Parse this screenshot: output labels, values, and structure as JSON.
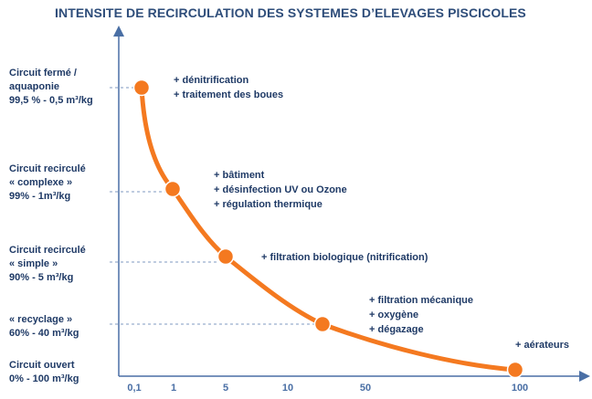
{
  "title": "INTENSITE DE RECIRCULATION DES SYSTEMES D’ELEVAGES PISCICOLES",
  "levels": [
    {
      "lines": [
        "Circuit fermé /",
        "aquaponie",
        "99,5 % -  0,5 m³/kg"
      ]
    },
    {
      "lines": [
        "Circuit recirculé",
        "« complexe »",
        "99% - 1m³/kg"
      ]
    },
    {
      "lines": [
        "Circuit recirculé",
        "« simple »",
        "90% -  5 m³/kg"
      ]
    },
    {
      "lines": [
        "« recyclage »",
        "60% - 40 m³/kg"
      ]
    },
    {
      "lines": [
        "Circuit ouvert",
        "0% - 100 m³/kg"
      ]
    }
  ],
  "annotations": [
    {
      "lines": [
        "+ dénitrification",
        "+ traitement des boues"
      ]
    },
    {
      "lines": [
        "+ bâtiment",
        "+ désinfection UV ou Ozone",
        "+ régulation thermique"
      ]
    },
    {
      "lines": [
        "+ filtration biologique (nitrification)"
      ]
    },
    {
      "lines": [
        "+ filtration mécanique",
        "+ oxygène",
        "+ dégazage"
      ]
    },
    {
      "lines": [
        "+ aérateurs"
      ]
    }
  ],
  "chart_data": {
    "type": "line",
    "title": "INTENSITE DE RECIRCULATION DES SYSTEMES D’ELEVAGES PISCICOLES",
    "x_ticks": [
      "0,1",
      "1",
      "5",
      "10",
      "50",
      "100"
    ],
    "points": [
      {
        "x": 0.5,
        "recirculation_pct": 99.5,
        "level": "Circuit fermé / aquaponie"
      },
      {
        "x": 1,
        "recirculation_pct": 99,
        "level": "Circuit recirculé « complexe »"
      },
      {
        "x": 5,
        "recirculation_pct": 90,
        "level": "Circuit recirculé « simple »"
      },
      {
        "x": 40,
        "recirculation_pct": 60,
        "level": "« recyclage »"
      },
      {
        "x": 100,
        "recirculation_pct": 0,
        "level": "Circuit ouvert"
      }
    ],
    "line_color": "#f47920",
    "axis_color": "#4a6fa5",
    "text_color": "#1f3a66"
  }
}
